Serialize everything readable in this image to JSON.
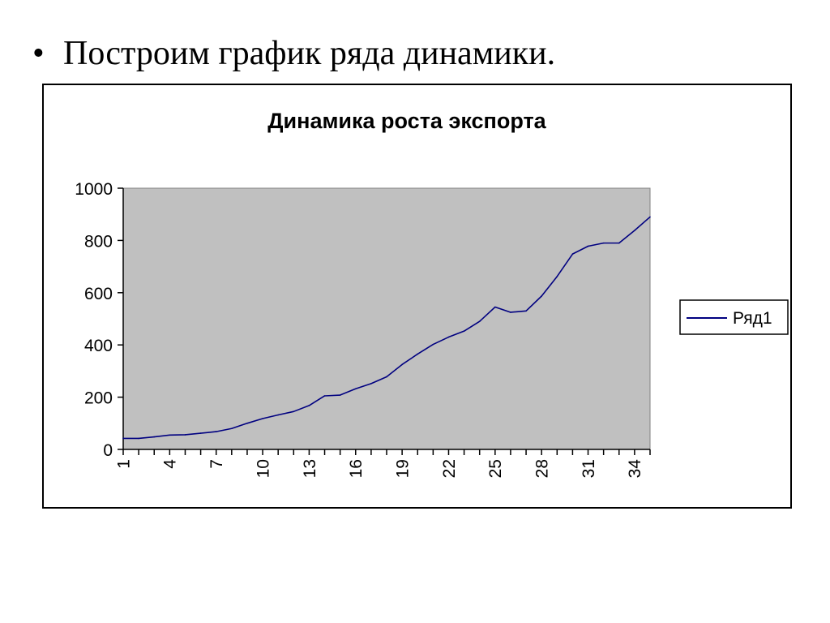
{
  "slide": {
    "bullet_symbol": "•",
    "bullet_text": "Построим график ряда динамики."
  },
  "colors": {
    "plot_background": "#c0c0c0",
    "series_line": "#000080",
    "axis": "#000000"
  },
  "chart_data": {
    "type": "line",
    "title": "Динамика роста экспорта",
    "xlabel": "",
    "ylabel": "",
    "ylim": [
      0,
      1000
    ],
    "yticks": [
      0,
      200,
      400,
      600,
      800,
      1000
    ],
    "x": [
      1,
      2,
      3,
      4,
      5,
      6,
      7,
      8,
      9,
      10,
      11,
      12,
      13,
      14,
      15,
      16,
      17,
      18,
      19,
      20,
      21,
      22,
      23,
      24,
      25,
      26,
      27,
      28,
      29,
      30,
      31,
      32,
      33,
      34,
      35
    ],
    "xtick_labels": [
      "1",
      "4",
      "7",
      "10",
      "13",
      "16",
      "19",
      "22",
      "25",
      "28",
      "31",
      "34"
    ],
    "grid": false,
    "legend_position": "right",
    "series": [
      {
        "name": "Ряд1",
        "values": [
          42,
          42,
          48,
          55,
          56,
          62,
          68,
          80,
          100,
          118,
          132,
          145,
          168,
          205,
          208,
          232,
          252,
          278,
          325,
          365,
          402,
          430,
          453,
          490,
          545,
          525,
          530,
          587,
          662,
          748,
          778,
          790,
          790,
          838,
          890
        ]
      }
    ]
  }
}
